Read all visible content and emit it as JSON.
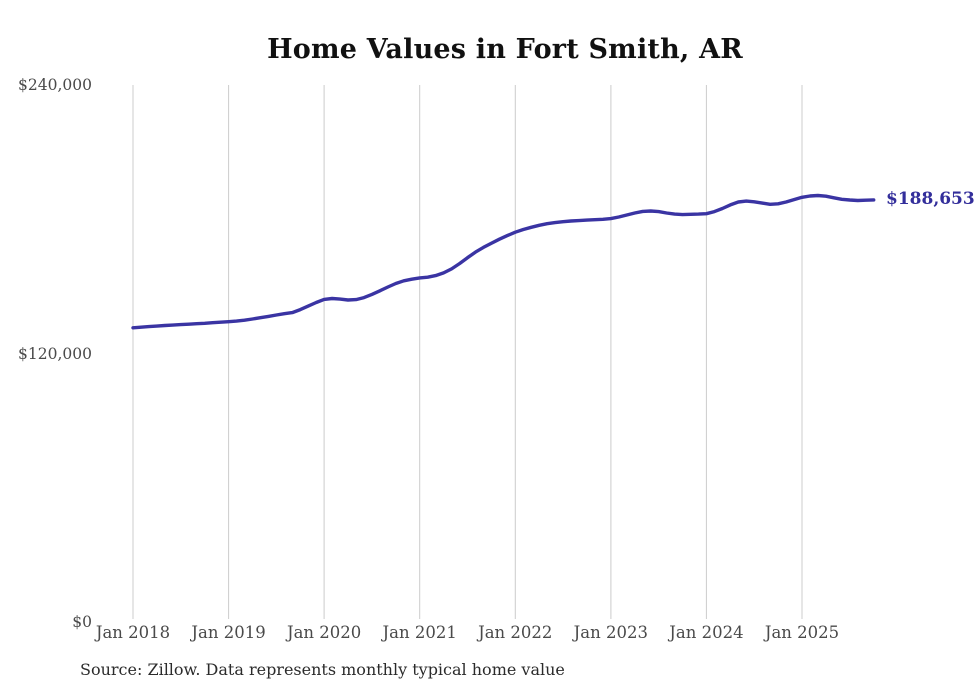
{
  "title": "Home Values in Fort Smith, AR",
  "source": "Source: Zillow. Data represents monthly typical home value",
  "colors": {
    "line": "#3a34a3",
    "end_label": "#332e9b",
    "gridline": "#cccccc",
    "axis_text": "#4a4a4a",
    "title_text": "#111111",
    "source_text": "#2b2b2b",
    "background": "#ffffff"
  },
  "chart_data": {
    "type": "line",
    "title": "Home Values in Fort Smith, AR",
    "xlabel": "",
    "ylabel": "",
    "ylim": [
      0,
      240000
    ],
    "grid": "vertical-only",
    "legend": "none",
    "y_ticks": [
      {
        "label": "$0",
        "value": 0
      },
      {
        "label": "$120,000",
        "value": 120000
      },
      {
        "label": "$240,000",
        "value": 240000
      }
    ],
    "x_tick_labels": [
      "Jan 2018",
      "Jan 2019",
      "Jan 2020",
      "Jan 2021",
      "Jan 2022",
      "Jan 2023",
      "Jan 2024",
      "Jan 2025"
    ],
    "end_label": "$188,653",
    "latest": {
      "month": "2025-10",
      "value": 188653
    },
    "x": [
      "2018-01",
      "2018-02",
      "2018-03",
      "2018-04",
      "2018-05",
      "2018-06",
      "2018-07",
      "2018-08",
      "2018-09",
      "2018-10",
      "2018-11",
      "2018-12",
      "2019-01",
      "2019-02",
      "2019-03",
      "2019-04",
      "2019-05",
      "2019-06",
      "2019-07",
      "2019-08",
      "2019-09",
      "2019-10",
      "2019-11",
      "2019-12",
      "2020-01",
      "2020-02",
      "2020-03",
      "2020-04",
      "2020-05",
      "2020-06",
      "2020-07",
      "2020-08",
      "2020-09",
      "2020-10",
      "2020-11",
      "2020-12",
      "2021-01",
      "2021-02",
      "2021-03",
      "2021-04",
      "2021-05",
      "2021-06",
      "2021-07",
      "2021-08",
      "2021-09",
      "2021-10",
      "2021-11",
      "2021-12",
      "2022-01",
      "2022-02",
      "2022-03",
      "2022-04",
      "2022-05",
      "2022-06",
      "2022-07",
      "2022-08",
      "2022-09",
      "2022-10",
      "2022-11",
      "2022-12",
      "2023-01",
      "2023-02",
      "2023-03",
      "2023-04",
      "2023-05",
      "2023-06",
      "2023-07",
      "2023-08",
      "2023-09",
      "2023-10",
      "2023-11",
      "2023-12",
      "2024-01",
      "2024-02",
      "2024-03",
      "2024-04",
      "2024-05",
      "2024-06",
      "2024-07",
      "2024-08",
      "2024-09",
      "2024-10",
      "2024-11",
      "2024-12",
      "2025-01",
      "2025-02",
      "2025-03",
      "2025-04",
      "2025-05",
      "2025-06",
      "2025-07",
      "2025-08",
      "2025-09",
      "2025-10"
    ],
    "values": [
      131500,
      131750,
      132000,
      132250,
      132500,
      132700,
      132900,
      133100,
      133300,
      133500,
      133750,
      134000,
      134200,
      134500,
      134900,
      135400,
      136000,
      136600,
      137200,
      137800,
      138300,
      139600,
      141200,
      142800,
      144200,
      144600,
      144300,
      143900,
      144100,
      145000,
      146400,
      148000,
      149700,
      151300,
      152500,
      153200,
      153800,
      154100,
      154800,
      156000,
      157800,
      160200,
      162800,
      165300,
      167400,
      169300,
      171100,
      172700,
      174200,
      175400,
      176400,
      177300,
      178000,
      178500,
      178900,
      179200,
      179400,
      179600,
      179800,
      180000,
      180300,
      181000,
      181900,
      182800,
      183500,
      183700,
      183400,
      182800,
      182300,
      182100,
      182200,
      182300,
      182500,
      183400,
      184800,
      186400,
      187700,
      188100,
      187800,
      187200,
      186700,
      186900,
      187700,
      188800,
      189800,
      190400,
      190600,
      190300,
      189600,
      188900,
      188600,
      188400,
      188500,
      188653
    ]
  }
}
